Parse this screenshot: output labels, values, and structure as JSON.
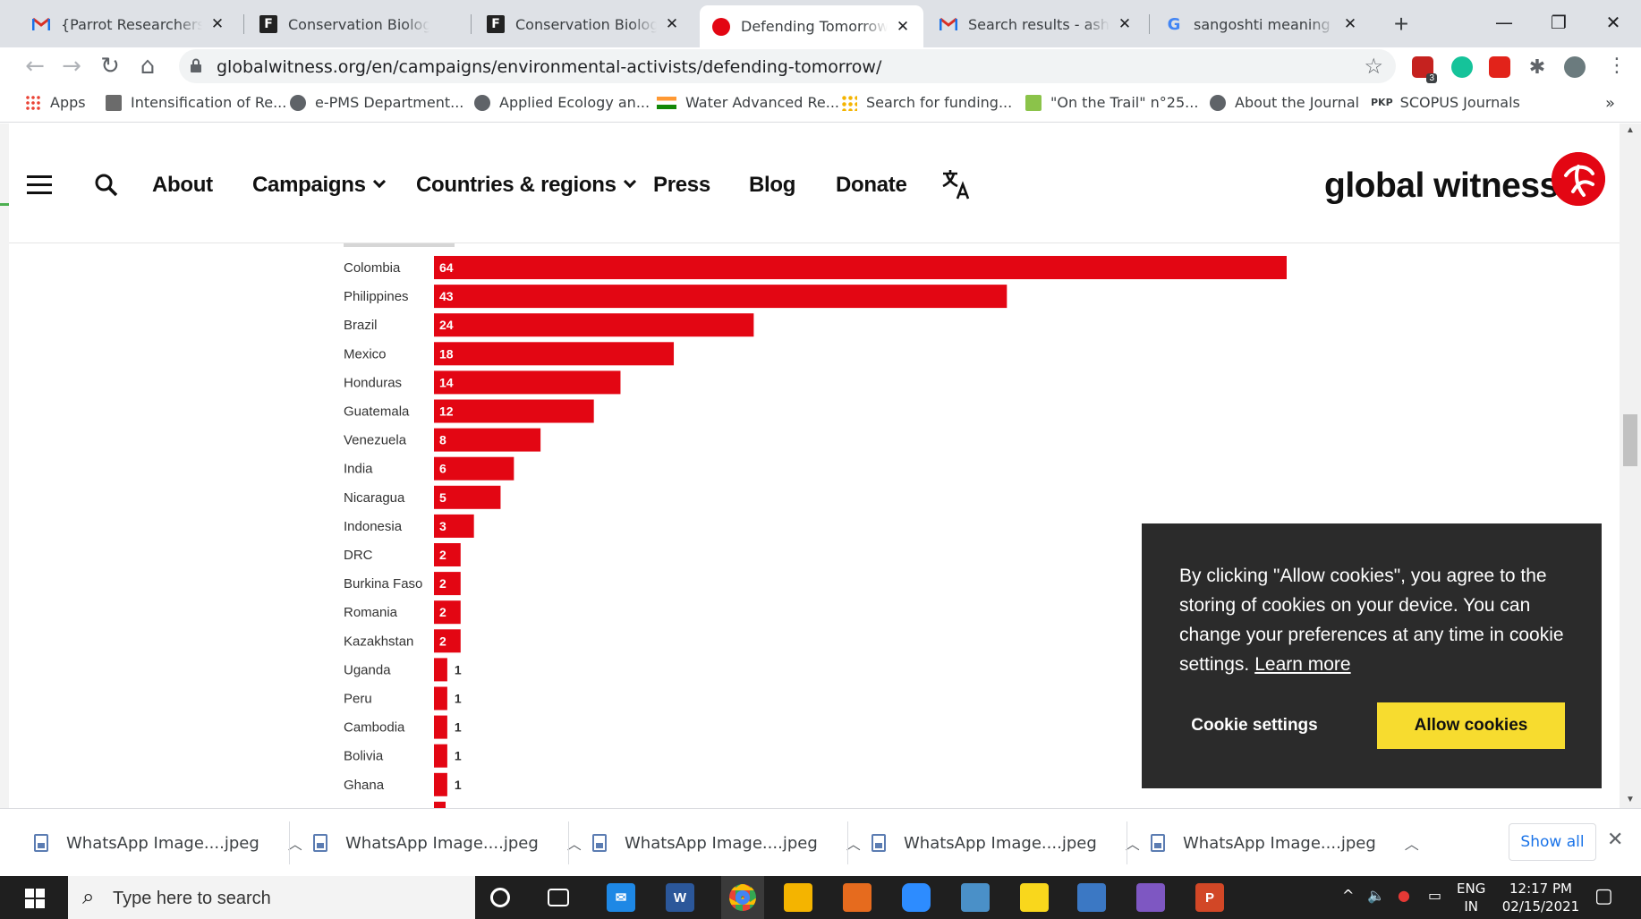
{
  "browser": {
    "tabs": [
      {
        "label": "{Parrot Researchers Gro",
        "favicon": "gmail-icon",
        "active": false
      },
      {
        "label": "Conservation Biologist",
        "favicon": "f-icon",
        "active": false
      },
      {
        "label": "Conservation Biologist",
        "favicon": "f-icon",
        "active": false
      },
      {
        "label": "Defending Tomorrow | G",
        "favicon": "global-witness-icon",
        "active": true
      },
      {
        "label": "Search results - asha.pc",
        "favicon": "gmail-icon",
        "active": false
      },
      {
        "label": "sangoshti meaning in h",
        "favicon": "google-icon",
        "active": false
      }
    ],
    "new_tab": "+",
    "url": "globalwitness.org/en/campaigns/environmental-activists/defending-tomorrow/",
    "bookmarks": [
      {
        "label": "Apps",
        "icon": "apps-grid-icon"
      },
      {
        "label": "Intensification of Re...",
        "icon": "figure-icon"
      },
      {
        "label": "e-PMS Department...",
        "icon": "globe-icon"
      },
      {
        "label": "Applied Ecology an...",
        "icon": "globe-icon"
      },
      {
        "label": "Water Advanced Re...",
        "icon": "india-flag-icon"
      },
      {
        "label": "Search for funding...",
        "icon": "dots-icon"
      },
      {
        "label": "\"On the Trail\" n°25...",
        "icon": "t-icon"
      },
      {
        "label": "About the Journal",
        "icon": "globe-icon"
      },
      {
        "label": "SCOPUS Journals",
        "icon": "pkp-icon"
      }
    ],
    "bookmark_badge": "PKP",
    "extension_badge": "3",
    "more_bookmarks": "»"
  },
  "site": {
    "nav": {
      "about": "About",
      "campaigns": "Campaigns",
      "countries": "Countries & regions",
      "press": "Press",
      "blog": "Blog",
      "donate": "Donate"
    },
    "logo_text": "global witness",
    "accent": "#e30613"
  },
  "chart_data": {
    "type": "bar",
    "orientation": "horizontal",
    "categories": [
      "Colombia",
      "Philippines",
      "Brazil",
      "Mexico",
      "Honduras",
      "Guatemala",
      "Venezuela",
      "India",
      "Nicaragua",
      "Indonesia",
      "DRC",
      "Burkina Faso",
      "Romania",
      "Kazakhstan",
      "Uganda",
      "Peru",
      "Cambodia",
      "Bolivia",
      "Ghana"
    ],
    "values": [
      64,
      43,
      24,
      18,
      14,
      12,
      8,
      6,
      5,
      3,
      2,
      2,
      2,
      2,
      1,
      1,
      1,
      1,
      1
    ],
    "bar_color": "#e30613",
    "xlim": [
      0,
      64
    ],
    "grid": false,
    "legend": "none"
  },
  "cookie_banner": {
    "text": "By clicking \"Allow cookies\", you agree to the storing of cookies on your device. You can change your preferences at any time in cookie settings.",
    "learn_more": "Learn more",
    "settings_button": "Cookie settings",
    "allow_button": "Allow cookies",
    "allow_color": "#f7dc2f"
  },
  "downloads": {
    "items": [
      "WhatsApp Image....jpeg",
      "WhatsApp Image....jpeg",
      "WhatsApp Image....jpeg",
      "WhatsApp Image....jpeg",
      "WhatsApp Image....jpeg"
    ],
    "show_all": "Show all"
  },
  "taskbar": {
    "search_placeholder": "Type here to search",
    "lang": "ENG",
    "region": "IN",
    "time": "12:17 PM",
    "date": "02/15/2021"
  }
}
